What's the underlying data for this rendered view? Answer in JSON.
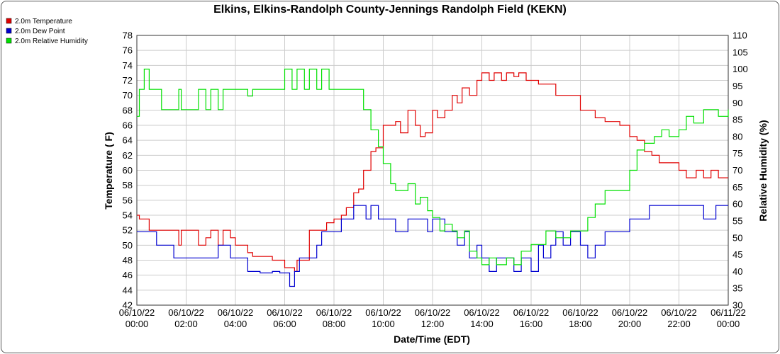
{
  "chart_data": {
    "type": "line",
    "title": "Elkins, Elkins-Randolph County-Jennings Randolph Field (KEKN)",
    "xlabel": "Date/Time (EDT)",
    "ylabel": "Temperature ( F)",
    "y2label": "Relative Humidity (%)",
    "ylim": [
      42,
      78
    ],
    "y2lim": [
      30,
      110
    ],
    "yticks": [
      "42",
      "44",
      "46",
      "48",
      "50",
      "52",
      "54",
      "56",
      "58",
      "60",
      "62",
      "64",
      "66",
      "68",
      "70",
      "72",
      "74",
      "76",
      "78"
    ],
    "y2ticks": [
      "30",
      "35",
      "40",
      "45",
      "50",
      "55",
      "60",
      "65",
      "70",
      "75",
      "80",
      "85",
      "90",
      "95",
      "100",
      "105",
      "110"
    ],
    "xticks": [
      {
        "date": "06/10/22",
        "time": "00:00",
        "hour": 0
      },
      {
        "date": "06/10/22",
        "time": "02:00",
        "hour": 2
      },
      {
        "date": "06/10/22",
        "time": "04:00",
        "hour": 4
      },
      {
        "date": "06/10/22",
        "time": "06:00",
        "hour": 6
      },
      {
        "date": "06/10/22",
        "time": "08:00",
        "hour": 8
      },
      {
        "date": "06/10/22",
        "time": "10:00",
        "hour": 10
      },
      {
        "date": "06/10/22",
        "time": "12:00",
        "hour": 12
      },
      {
        "date": "06/10/22",
        "time": "14:00",
        "hour": 14
      },
      {
        "date": "06/10/22",
        "time": "16:00",
        "hour": 16
      },
      {
        "date": "06/10/22",
        "time": "18:00",
        "hour": 18
      },
      {
        "date": "06/10/22",
        "time": "20:00",
        "hour": 20
      },
      {
        "date": "06/10/22",
        "time": "22:00",
        "hour": 22
      },
      {
        "date": "06/11/22",
        "time": "00:00",
        "hour": 24
      }
    ],
    "grid": true,
    "legend_position": "top-left",
    "series": [
      {
        "name": "2.0m Temperature",
        "color": "#e00000",
        "axis": "left",
        "x": [
          0,
          0.1,
          0.5,
          1.0,
          1.7,
          1.8,
          2.0,
          2.5,
          2.8,
          3.0,
          3.3,
          3.5,
          3.8,
          4.0,
          4.3,
          4.5,
          4.7,
          5.0,
          5.5,
          5.8,
          6.0,
          6.4,
          6.5,
          6.7,
          7.0,
          7.3,
          7.7,
          8.0,
          8.3,
          8.5,
          8.8,
          9.0,
          9.2,
          9.5,
          9.7,
          10.0,
          10.3,
          10.5,
          10.7,
          11.0,
          11.3,
          11.5,
          11.7,
          12.0,
          12.2,
          12.5,
          12.8,
          13.0,
          13.2,
          13.5,
          13.8,
          14.0,
          14.3,
          14.5,
          14.8,
          15.0,
          15.3,
          15.5,
          15.8,
          16.0,
          16.3,
          16.5,
          16.8,
          17.0,
          17.3,
          17.5,
          17.8,
          18.0,
          18.3,
          18.6,
          19.0,
          19.3,
          19.6,
          20.0,
          20.3,
          20.6,
          20.9,
          21.2,
          21.5,
          21.8,
          22.0,
          22.3,
          22.7,
          23.0,
          23.3,
          23.6,
          24.0
        ],
        "values": [
          54,
          53.5,
          52,
          52,
          50,
          52,
          52,
          50,
          51,
          52,
          50,
          52,
          51,
          50,
          50,
          49,
          48.5,
          48.5,
          48,
          48,
          47,
          46.5,
          48,
          48,
          52,
          52,
          53,
          53.5,
          54,
          55,
          57,
          57.5,
          60,
          62.5,
          63,
          66,
          66,
          66.5,
          65,
          68,
          66,
          64.5,
          65,
          68,
          67,
          68,
          70,
          69,
          71,
          70,
          72,
          73,
          72,
          73,
          72,
          73,
          72.5,
          73,
          72,
          72,
          71.5,
          71.5,
          71.5,
          70,
          70,
          70,
          70,
          68,
          68,
          67,
          66.5,
          66.5,
          66,
          64.5,
          64,
          62.5,
          62,
          61,
          61,
          61,
          60,
          59,
          60,
          59,
          60,
          59,
          59
        ]
      },
      {
        "name": "2.0m Dew Point",
        "color": "#0000d0",
        "axis": "left",
        "x": [
          0,
          0.5,
          0.8,
          1.0,
          1.5,
          2.0,
          2.8,
          3.0,
          3.3,
          3.5,
          3.8,
          4.0,
          4.5,
          4.7,
          5.0,
          5.5,
          5.8,
          6.0,
          6.2,
          6.4,
          6.6,
          7.0,
          7.3,
          7.5,
          7.8,
          8.0,
          8.3,
          8.5,
          8.8,
          9.0,
          9.3,
          9.5,
          9.8,
          10.0,
          10.5,
          10.8,
          11.0,
          11.5,
          11.8,
          12.0,
          12.5,
          12.8,
          13.0,
          13.3,
          13.5,
          13.8,
          14.0,
          14.3,
          14.6,
          15.0,
          15.3,
          15.6,
          16.0,
          16.3,
          16.5,
          16.8,
          17.0,
          17.3,
          17.6,
          18.0,
          18.3,
          18.6,
          19.0,
          19.5,
          20.0,
          20.3,
          20.5,
          20.8,
          21.0,
          21.5,
          22.0,
          22.5,
          23.0,
          23.5,
          24.0
        ],
        "values": [
          51.8,
          51.8,
          50,
          50,
          48.3,
          48.3,
          48.3,
          48.3,
          50,
          50,
          48.3,
          48.3,
          46.5,
          46.5,
          46.3,
          46.5,
          46.3,
          46.3,
          44.5,
          46.5,
          48.3,
          48.3,
          50,
          51.8,
          51.8,
          51.8,
          53.5,
          53.5,
          55.3,
          55.3,
          53.5,
          55.3,
          53.5,
          53.5,
          51.8,
          51.8,
          53.5,
          53.5,
          51.8,
          53.5,
          51.8,
          51.8,
          50,
          51.8,
          48.3,
          50,
          48.3,
          46.5,
          48.3,
          48.3,
          46.5,
          48.3,
          46.5,
          50,
          48.3,
          50,
          51.8,
          50,
          51.8,
          50,
          48.3,
          50,
          51.8,
          51.8,
          53.5,
          53.5,
          53.5,
          55.3,
          55.3,
          55.3,
          55.3,
          55.3,
          53.5,
          55.3,
          55.3
        ]
      },
      {
        "name": "2.0m Relative Humidity",
        "color": "#00e000",
        "axis": "right",
        "x": [
          0,
          0.1,
          0.3,
          0.5,
          0.8,
          1.0,
          1.5,
          1.7,
          1.8,
          2.0,
          2.5,
          2.8,
          3.0,
          3.3,
          3.5,
          3.8,
          4.0,
          4.3,
          4.5,
          4.7,
          5.0,
          5.5,
          5.8,
          6.0,
          6.3,
          6.5,
          6.8,
          7.0,
          7.3,
          7.5,
          7.8,
          8.0,
          8.3,
          8.5,
          8.8,
          9.0,
          9.2,
          9.5,
          9.8,
          10.0,
          10.3,
          10.5,
          10.8,
          11.0,
          11.3,
          11.5,
          11.8,
          12.0,
          12.3,
          12.5,
          12.8,
          13.0,
          13.3,
          13.5,
          13.8,
          14.0,
          14.3,
          14.6,
          15.0,
          15.3,
          15.6,
          16.0,
          16.3,
          16.6,
          17.0,
          17.3,
          17.6,
          18.0,
          18.3,
          18.6,
          19.0,
          19.5,
          20.0,
          20.3,
          20.6,
          21.0,
          21.3,
          21.6,
          22.0,
          22.3,
          22.6,
          23.0,
          23.3,
          23.6,
          24.0
        ],
        "values": [
          86,
          94,
          100,
          94,
          94,
          88,
          88,
          94,
          88,
          88,
          94,
          88,
          94,
          88,
          94,
          94,
          94,
          94,
          92,
          94,
          94,
          94,
          94,
          100,
          94,
          100,
          94,
          100,
          94,
          100,
          94,
          94,
          94,
          94,
          94,
          94,
          88,
          82,
          77,
          72,
          66,
          64,
          64,
          66,
          60,
          62,
          58,
          56,
          52,
          54,
          52,
          50,
          52,
          46,
          44,
          42,
          44,
          42,
          44,
          42,
          46,
          48,
          48,
          52,
          50,
          50,
          52,
          52,
          56,
          60,
          64,
          64,
          70,
          76,
          78,
          80,
          82,
          80,
          82,
          86,
          84,
          88,
          88,
          86,
          88
        ]
      }
    ]
  }
}
